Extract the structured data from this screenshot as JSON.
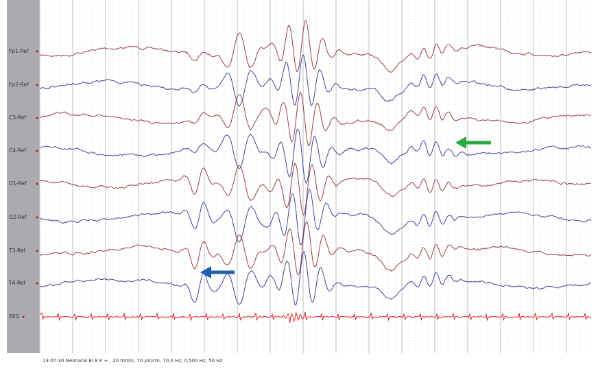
{
  "channels": [
    {
      "label": "Fp1-Ref"
    },
    {
      "label": "Fp2-Ref"
    },
    {
      "label": "C3-Ref"
    },
    {
      "label": "C4-Ref"
    },
    {
      "label": "O1-Ref"
    },
    {
      "label": "O2-Ref"
    },
    {
      "label": "T3-Ref"
    },
    {
      "label": "T4-Ref"
    },
    {
      "label": "EKG"
    }
  ],
  "status_bar": "13:07:30 Neonatal EI 8 K + , 20 mm/s, 70 µV/cm, 70,0 Hz, 0,500 Hz, 50 Hz"
}
